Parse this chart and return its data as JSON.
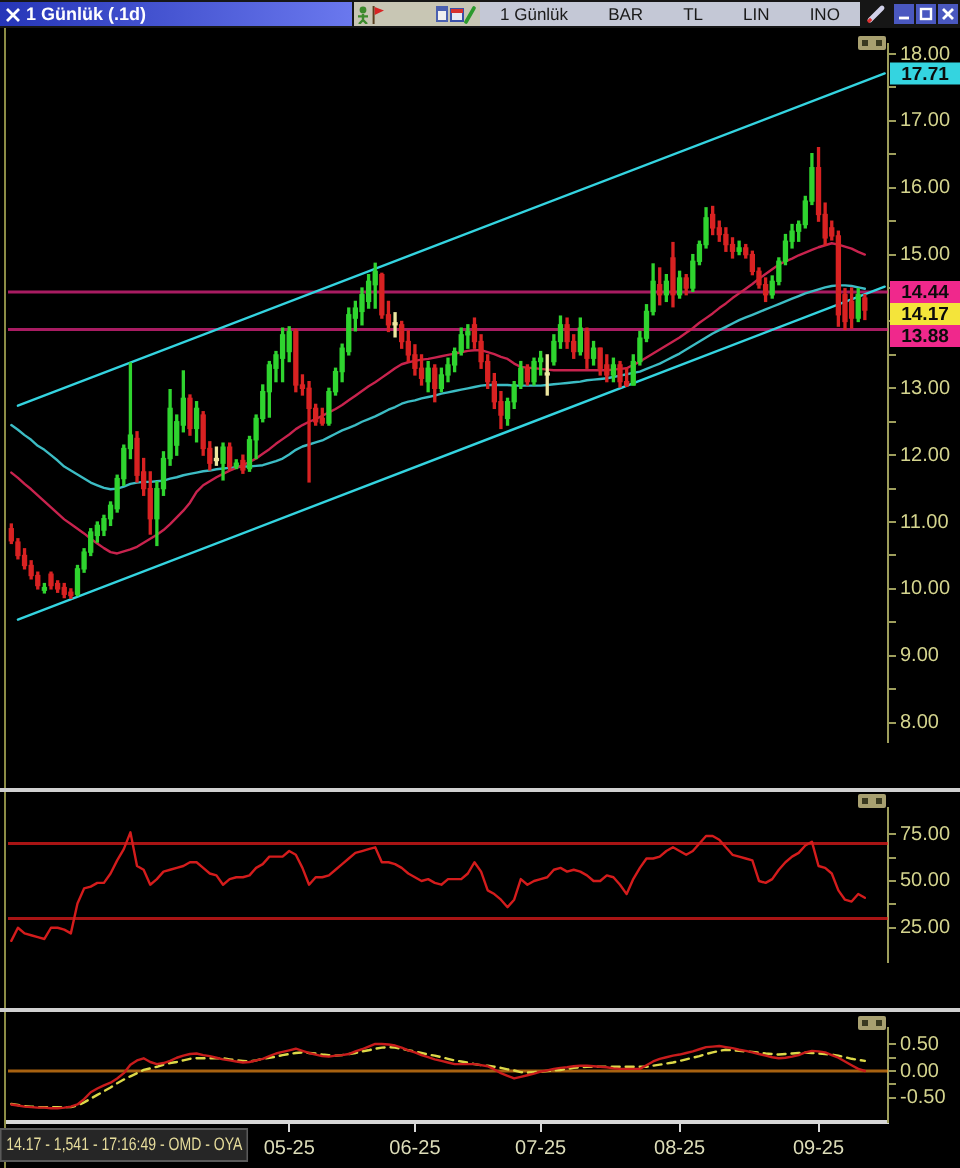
{
  "chart_data": [
    {
      "type": "candlestick",
      "title": "1 Günlük (.1d)",
      "categories": [
        null,
        null,
        null,
        null,
        null,
        null,
        null,
        null,
        null,
        null,
        null,
        null,
        null,
        null,
        null,
        null,
        null,
        null,
        null,
        null,
        null,
        null,
        null,
        null,
        null,
        null,
        null,
        null,
        null,
        null,
        null,
        null,
        null,
        null,
        null,
        null,
        null,
        null,
        null,
        null,
        null,
        null,
        null,
        null,
        null,
        null,
        null,
        null,
        null,
        null,
        null,
        null,
        null,
        null,
        null,
        null,
        null,
        null,
        null,
        null,
        null,
        null,
        null,
        null,
        null,
        null,
        null,
        null,
        null,
        null,
        null,
        null,
        null,
        null,
        null,
        null,
        null,
        null,
        null,
        null,
        null,
        null,
        null,
        null,
        null,
        null,
        null,
        null,
        null,
        null,
        null,
        null,
        null,
        null,
        null,
        null,
        null,
        null,
        null,
        null,
        null,
        null,
        null,
        null,
        null,
        null,
        null,
        null,
        null,
        null,
        null,
        null,
        null,
        null,
        null,
        null,
        null,
        null,
        null,
        null,
        null,
        null,
        null,
        null,
        null,
        null,
        null,
        null,
        null,
        null,
        null,
        null,
        null
      ],
      "ohlc": [
        [
          10.9,
          10.97,
          10.68,
          10.72
        ],
        [
          10.7,
          10.75,
          10.45,
          10.5
        ],
        [
          10.5,
          10.6,
          10.3,
          10.35
        ],
        [
          10.35,
          10.42,
          10.15,
          10.2
        ],
        [
          10.2,
          10.25,
          10.0,
          10.05
        ],
        [
          9.98,
          10.08,
          9.94,
          10.02
        ],
        [
          10.22,
          10.25,
          10.0,
          10.05
        ],
        [
          10.08,
          10.12,
          9.95,
          10.0
        ],
        [
          10.02,
          10.08,
          9.87,
          9.92
        ],
        [
          9.95,
          10.0,
          9.86,
          9.9
        ],
        [
          9.92,
          10.35,
          9.9,
          10.3
        ],
        [
          10.3,
          10.6,
          10.25,
          10.55
        ],
        [
          10.55,
          10.9,
          10.5,
          10.85
        ],
        [
          10.8,
          11.0,
          10.7,
          10.95
        ],
        [
          10.88,
          11.1,
          10.8,
          11.05
        ],
        [
          11.05,
          11.3,
          10.95,
          11.25
        ],
        [
          11.2,
          11.7,
          11.15,
          11.65
        ],
        [
          11.65,
          12.15,
          11.55,
          12.1
        ],
        [
          12.1,
          13.38,
          11.95,
          12.3
        ],
        [
          12.25,
          12.35,
          11.6,
          11.7
        ],
        [
          11.75,
          11.95,
          11.4,
          11.5
        ],
        [
          11.5,
          11.75,
          10.82,
          11.05
        ],
        [
          11.05,
          11.6,
          10.65,
          11.5
        ],
        [
          11.5,
          12.05,
          11.4,
          11.95
        ],
        [
          11.95,
          12.98,
          11.85,
          12.7
        ],
        [
          12.15,
          12.6,
          12.0,
          12.5
        ],
        [
          12.45,
          13.26,
          12.35,
          12.85
        ],
        [
          12.85,
          12.9,
          12.3,
          12.4
        ],
        [
          12.4,
          12.8,
          12.2,
          12.7
        ],
        [
          12.6,
          12.65,
          12.0,
          12.1
        ],
        [
          12.1,
          12.2,
          11.78,
          11.88
        ],
        [
          11.92,
          12.12,
          11.85,
          11.92
        ],
        [
          11.88,
          12.18,
          11.63,
          12.12
        ],
        [
          12.12,
          12.18,
          11.78,
          11.83
        ],
        [
          11.83,
          11.93,
          11.8,
          11.88
        ],
        [
          11.92,
          12.0,
          11.73,
          11.78
        ],
        [
          11.8,
          12.28,
          11.76,
          12.23
        ],
        [
          12.23,
          12.6,
          11.95,
          12.55
        ],
        [
          12.55,
          13.05,
          12.5,
          12.95
        ],
        [
          12.95,
          13.4,
          12.57,
          13.35
        ],
        [
          13.3,
          13.55,
          13.1,
          13.5
        ],
        [
          13.45,
          13.9,
          13.1,
          13.8
        ],
        [
          13.55,
          13.92,
          13.4,
          13.85
        ],
        [
          13.85,
          13.88,
          12.95,
          13.05
        ],
        [
          13.05,
          13.2,
          12.9,
          13.0
        ],
        [
          13.0,
          13.1,
          11.6,
          12.7
        ],
        [
          12.7,
          12.76,
          12.45,
          12.5
        ],
        [
          12.55,
          12.7,
          12.45,
          12.48
        ],
        [
          12.48,
          13.0,
          12.45,
          12.95
        ],
        [
          12.95,
          13.3,
          12.9,
          13.25
        ],
        [
          13.25,
          13.66,
          13.1,
          13.6
        ],
        [
          13.55,
          14.2,
          13.5,
          14.1
        ],
        [
          14.05,
          14.3,
          13.86,
          14.2
        ],
        [
          14.15,
          14.5,
          13.95,
          14.4
        ],
        [
          14.3,
          14.7,
          14.2,
          14.6
        ],
        [
          14.55,
          14.87,
          14.2,
          14.75
        ],
        [
          14.7,
          14.72,
          14.05,
          14.1
        ],
        [
          14.1,
          14.3,
          13.85,
          13.95
        ],
        [
          13.95,
          14.13,
          13.77,
          13.95
        ],
        [
          13.95,
          14.0,
          13.6,
          13.7
        ],
        [
          13.7,
          13.86,
          13.4,
          13.5
        ],
        [
          13.5,
          13.65,
          13.2,
          13.3
        ],
        [
          13.3,
          13.5,
          13.05,
          13.15
        ],
        [
          13.1,
          13.4,
          12.95,
          13.3
        ],
        [
          13.3,
          13.35,
          12.8,
          13.0
        ],
        [
          13.0,
          13.3,
          12.95,
          13.2
        ],
        [
          13.2,
          13.45,
          13.1,
          13.35
        ],
        [
          13.35,
          13.6,
          13.25,
          13.55
        ],
        [
          13.55,
          13.9,
          13.5,
          13.8
        ],
        [
          13.8,
          13.95,
          13.6,
          13.85
        ],
        [
          13.95,
          14.05,
          13.6,
          13.7
        ],
        [
          13.7,
          13.8,
          13.3,
          13.4
        ],
        [
          13.4,
          13.5,
          13.0,
          13.1
        ],
        [
          13.1,
          13.22,
          12.7,
          12.8
        ],
        [
          12.8,
          12.95,
          12.4,
          12.6
        ],
        [
          12.55,
          12.85,
          12.45,
          12.8
        ],
        [
          12.8,
          13.1,
          12.7,
          13.05
        ],
        [
          13.05,
          13.4,
          13.0,
          13.3
        ],
        [
          13.3,
          13.35,
          13.05,
          13.1
        ],
        [
          13.1,
          13.45,
          13.05,
          13.4
        ],
        [
          13.4,
          13.55,
          13.2,
          13.45
        ],
        [
          13.2,
          13.5,
          12.9,
          13.2
        ],
        [
          13.4,
          13.8,
          13.35,
          13.7
        ],
        [
          13.7,
          14.08,
          13.6,
          13.95
        ],
        [
          13.95,
          14.05,
          13.6,
          13.7
        ],
        [
          13.7,
          13.8,
          13.45,
          13.55
        ],
        [
          13.55,
          14.05,
          13.5,
          13.9
        ],
        [
          13.85,
          13.9,
          13.3,
          13.45
        ],
        [
          13.45,
          13.7,
          13.35,
          13.6
        ],
        [
          13.6,
          13.6,
          13.2,
          13.3
        ],
        [
          13.35,
          13.5,
          13.1,
          13.2
        ],
        [
          13.2,
          13.45,
          13.1,
          13.35
        ],
        [
          13.35,
          13.4,
          13.02,
          13.1
        ],
        [
          13.1,
          13.3,
          13.03,
          13.05
        ],
        [
          13.05,
          13.5,
          13.05,
          13.4
        ],
        [
          13.4,
          13.85,
          13.35,
          13.75
        ],
        [
          13.75,
          14.25,
          13.7,
          14.15
        ],
        [
          14.15,
          14.86,
          14.1,
          14.6
        ],
        [
          14.55,
          14.8,
          14.25,
          14.4
        ],
        [
          14.4,
          14.7,
          14.3,
          14.6
        ],
        [
          14.95,
          15.18,
          14.22,
          14.4
        ],
        [
          14.4,
          14.75,
          14.35,
          14.65
        ],
        [
          14.65,
          14.7,
          14.4,
          14.5
        ],
        [
          14.5,
          15.0,
          14.45,
          14.9
        ],
        [
          14.9,
          15.2,
          14.85,
          15.15
        ],
        [
          15.15,
          15.7,
          15.1,
          15.55
        ],
        [
          15.6,
          15.72,
          15.3,
          15.4
        ],
        [
          15.4,
          15.5,
          15.2,
          15.3
        ],
        [
          15.3,
          15.4,
          15.05,
          15.15
        ],
        [
          15.15,
          15.25,
          14.95,
          15.05
        ],
        [
          15.05,
          15.2,
          15.0,
          15.1
        ],
        [
          15.1,
          15.15,
          14.95,
          15.0
        ],
        [
          15.0,
          15.05,
          14.7,
          14.75
        ],
        [
          14.75,
          14.8,
          14.5,
          14.55
        ],
        [
          14.55,
          14.65,
          14.3,
          14.4
        ],
        [
          14.4,
          14.68,
          14.35,
          14.6
        ],
        [
          14.6,
          14.95,
          14.55,
          14.9
        ],
        [
          14.9,
          15.3,
          14.85,
          15.2
        ],
        [
          15.2,
          15.45,
          15.1,
          15.35
        ],
        [
          15.35,
          15.5,
          15.2,
          15.45
        ],
        [
          15.45,
          15.87,
          15.4,
          15.8
        ],
        [
          15.8,
          16.51,
          15.75,
          16.3
        ],
        [
          16.3,
          16.6,
          15.5,
          15.6
        ],
        [
          15.6,
          15.77,
          15.14,
          15.25
        ],
        [
          15.4,
          15.5,
          15.22,
          15.28
        ],
        [
          15.28,
          15.35,
          13.93,
          14.1
        ],
        [
          14.4,
          14.49,
          13.88,
          14.0
        ],
        [
          14.3,
          14.5,
          13.9,
          14.05
        ],
        [
          14.05,
          14.49,
          14.0,
          14.4
        ],
        [
          14.35,
          14.4,
          14.03,
          14.17
        ],
        null,
        null,
        null
      ],
      "series": [
        {
          "type": "line",
          "color": "#c8234e",
          "values": [
            11.74,
            11.66,
            11.57,
            11.49,
            11.4,
            11.31,
            11.22,
            11.13,
            11.04,
            10.97,
            10.9,
            10.83,
            10.75,
            10.68,
            10.61,
            10.55,
            10.53,
            10.56,
            10.59,
            10.63,
            10.69,
            10.75,
            10.81,
            10.88,
            10.97,
            11.07,
            11.17,
            11.29,
            11.45,
            11.55,
            11.61,
            11.67,
            11.72,
            11.77,
            11.81,
            11.85,
            11.9,
            11.95,
            12.02,
            12.09,
            12.17,
            12.24,
            12.31,
            12.39,
            12.45,
            12.5,
            12.54,
            12.59,
            12.64,
            12.69,
            12.75,
            12.82,
            12.89,
            12.96,
            13.03,
            13.09,
            13.16,
            13.23,
            13.3,
            13.36,
            13.39,
            13.41,
            13.43,
            13.44,
            13.46,
            13.48,
            13.5,
            13.52,
            13.54,
            13.56,
            13.57,
            13.57,
            13.54,
            13.51,
            13.47,
            13.44,
            13.37,
            13.32,
            13.31,
            13.3,
            13.29,
            13.28,
            13.27,
            13.27,
            13.27,
            13.27,
            13.27,
            13.27,
            13.27,
            13.27,
            13.27,
            13.28,
            13.29,
            13.3,
            13.35,
            13.4,
            13.46,
            13.52,
            13.58,
            13.64,
            13.7,
            13.76,
            13.83,
            13.9,
            13.98,
            14.05,
            14.12,
            14.2,
            14.27,
            14.35,
            14.42,
            14.49,
            14.56,
            14.64,
            14.71,
            14.78,
            14.85,
            14.9,
            14.94,
            14.99,
            15.03,
            15.07,
            15.11,
            15.14,
            15.17,
            15.15,
            15.12,
            15.09,
            15.04,
            15.0,
            null,
            null,
            null
          ]
        },
        {
          "type": "line",
          "color": "#3cbcc4",
          "values": [
            12.45,
            12.38,
            12.3,
            12.23,
            12.14,
            12.08,
            12.0,
            11.92,
            11.83,
            11.77,
            11.71,
            11.65,
            11.59,
            11.55,
            11.51,
            11.49,
            11.5,
            11.53,
            11.57,
            11.59,
            11.6,
            11.6,
            11.61,
            11.62,
            11.65,
            11.67,
            11.7,
            11.72,
            11.74,
            11.76,
            11.77,
            11.79,
            11.8,
            11.81,
            11.82,
            11.83,
            11.83,
            11.84,
            11.85,
            11.88,
            11.91,
            11.95,
            12.01,
            12.08,
            12.13,
            12.16,
            12.19,
            12.22,
            12.27,
            12.32,
            12.37,
            12.41,
            12.45,
            12.5,
            12.54,
            12.58,
            12.63,
            12.68,
            12.72,
            12.77,
            12.8,
            12.82,
            12.85,
            12.87,
            12.89,
            12.92,
            12.94,
            12.96,
            12.98,
            13.0,
            13.02,
            13.04,
            13.05,
            13.05,
            13.05,
            13.05,
            13.04,
            13.04,
            13.04,
            13.04,
            13.04,
            13.05,
            13.06,
            13.07,
            13.08,
            13.09,
            13.1,
            13.12,
            13.13,
            13.14,
            13.15,
            13.17,
            13.19,
            13.21,
            13.23,
            13.25,
            13.29,
            13.33,
            13.37,
            13.42,
            13.47,
            13.52,
            13.58,
            13.64,
            13.7,
            13.76,
            13.82,
            13.87,
            13.92,
            13.97,
            14.02,
            14.06,
            14.1,
            14.14,
            14.18,
            14.22,
            14.26,
            14.3,
            14.34,
            14.38,
            14.42,
            14.45,
            14.48,
            14.51,
            14.53,
            14.54,
            14.54,
            14.53,
            14.51,
            14.49,
            null,
            null,
            null
          ]
        },
        {
          "type": "line",
          "color": "#34d4e0",
          "values": [
            null,
            12.74,
            null,
            null,
            null,
            null,
            null,
            null,
            null,
            null,
            null,
            null,
            null,
            null,
            null,
            null,
            null,
            null,
            null,
            null,
            null,
            null,
            null,
            null,
            null,
            null,
            null,
            null,
            null,
            null,
            null,
            null,
            null,
            null,
            null,
            null,
            null,
            null,
            null,
            null,
            null,
            null,
            null,
            null,
            null,
            null,
            null,
            null,
            null,
            null,
            null,
            null,
            null,
            null,
            null,
            null,
            null,
            null,
            null,
            null,
            null,
            null,
            null,
            null,
            null,
            null,
            null,
            null,
            null,
            null,
            null,
            null,
            null,
            null,
            null,
            null,
            null,
            null,
            null,
            null,
            null,
            null,
            null,
            null,
            null,
            null,
            null,
            null,
            null,
            null,
            null,
            null,
            null,
            null,
            null,
            null,
            null,
            null,
            null,
            null,
            null,
            null,
            null,
            null,
            null,
            null,
            null,
            null,
            null,
            null,
            null,
            null,
            null,
            null,
            null,
            null,
            null,
            null,
            null,
            null,
            null,
            null,
            null,
            null,
            null,
            null,
            null,
            null,
            null,
            null,
            null,
            null,
            17.71
          ]
        },
        {
          "type": "line",
          "color": "#34d4e0",
          "values": [
            null,
            9.54,
            null,
            null,
            null,
            null,
            null,
            null,
            null,
            null,
            null,
            null,
            null,
            null,
            null,
            null,
            null,
            null,
            null,
            null,
            null,
            null,
            null,
            null,
            null,
            null,
            null,
            null,
            null,
            null,
            null,
            null,
            null,
            null,
            null,
            null,
            null,
            null,
            null,
            null,
            null,
            null,
            null,
            null,
            null,
            null,
            null,
            null,
            null,
            null,
            null,
            null,
            null,
            null,
            null,
            null,
            null,
            null,
            null,
            null,
            null,
            null,
            null,
            null,
            null,
            null,
            null,
            null,
            null,
            null,
            null,
            null,
            null,
            null,
            null,
            null,
            null,
            null,
            null,
            null,
            null,
            null,
            null,
            null,
            null,
            null,
            null,
            null,
            null,
            null,
            null,
            null,
            null,
            null,
            null,
            null,
            null,
            null,
            null,
            null,
            null,
            null,
            null,
            null,
            null,
            null,
            null,
            null,
            null,
            null,
            null,
            null,
            null,
            null,
            null,
            null,
            null,
            null,
            null,
            null,
            null,
            null,
            null,
            null,
            null,
            null,
            null,
            null,
            null,
            null,
            null,
            null,
            14.52
          ]
        }
      ],
      "ylim": [
        7.71,
        18.15
      ],
      "yticks": [
        {
          "value": 8,
          "label": "8.00"
        },
        {
          "value": 8.5,
          "label": null
        },
        {
          "value": 9,
          "label": "9.00"
        },
        {
          "value": 9.5,
          "label": null
        },
        {
          "value": 10,
          "label": "10.00"
        },
        {
          "value": 10.5,
          "label": null
        },
        {
          "value": 11,
          "label": "11.00"
        },
        {
          "value": 11.5,
          "label": null
        },
        {
          "value": 12,
          "label": "12.00"
        },
        {
          "value": 12.5,
          "label": null
        },
        {
          "value": 13,
          "label": "13.00"
        },
        {
          "value": 13.5,
          "label": null
        },
        {
          "value": 14,
          "label": null
        },
        {
          "value": 14.5,
          "label": null
        },
        {
          "value": 15,
          "label": "15.00"
        },
        {
          "value": 15.5,
          "label": null
        },
        {
          "value": 16,
          "label": "16.00"
        },
        {
          "value": 16.5,
          "label": null
        },
        {
          "value": 17,
          "label": "17.00"
        },
        {
          "value": 17.5,
          "label": null
        },
        {
          "value": 18,
          "label": "18.00"
        }
      ],
      "ref_lines": [
        {
          "axis": "y",
          "value": 14.44,
          "label": "14.44",
          "color": "#f0288c"
        },
        {
          "axis": "y",
          "value": 13.88,
          "label": "13.88",
          "color": "#f0288c"
        }
      ],
      "annotations": [
        {
          "text": "17.71",
          "y": 17.71
        },
        {
          "text": "14.17",
          "y": 14.17
        },
        "1 Günlük",
        "BAR",
        "TL",
        "LIN",
        "INO"
      ],
      "tick_labels": "y",
      "grid": false,
      "legend": false
    },
    {
      "type": "line",
      "categories": [
        null,
        null,
        null,
        null,
        null,
        null,
        null,
        null,
        null,
        null,
        null,
        null,
        null,
        null,
        null,
        null,
        null,
        null,
        null,
        null,
        null,
        null,
        null,
        null,
        null,
        null,
        null,
        null,
        null,
        null,
        null,
        null,
        null,
        null,
        null,
        null,
        null,
        null,
        null,
        null,
        null,
        null,
        null,
        null,
        null,
        null,
        null,
        null,
        null,
        null,
        null,
        null,
        null,
        null,
        null,
        null,
        null,
        null,
        null,
        null,
        null,
        null,
        null,
        null,
        null,
        null,
        null,
        null,
        null,
        null,
        null,
        null,
        null,
        null,
        null,
        null,
        null,
        null,
        null,
        null,
        null,
        null,
        null,
        null,
        null,
        null,
        null,
        null,
        null,
        null,
        null,
        null,
        null,
        null,
        null,
        null,
        null,
        null,
        null,
        null,
        null,
        null,
        null,
        null,
        null,
        null,
        null,
        null,
        null,
        null,
        null,
        null,
        null,
        null,
        null,
        null,
        null,
        null,
        null,
        null,
        null,
        null,
        null,
        null,
        null,
        null,
        null,
        null,
        null,
        null,
        null,
        null,
        null
      ],
      "series": [
        {
          "color": "#d41c1c",
          "values": [
            18,
            25,
            22,
            21,
            20,
            19,
            25,
            25,
            24,
            22,
            38,
            46,
            47,
            49,
            49,
            54,
            61,
            67,
            76,
            58,
            56,
            48,
            51,
            55,
            56,
            57,
            58,
            60,
            60,
            57,
            54,
            53,
            48,
            51,
            52,
            52,
            53,
            57,
            59,
            63,
            63,
            63,
            66,
            64,
            57,
            48,
            52,
            52,
            53,
            56,
            59,
            62,
            65,
            66,
            67,
            68,
            60,
            60,
            59,
            57,
            54,
            52,
            50,
            51,
            49,
            48,
            51,
            51,
            51,
            54,
            60,
            55,
            45,
            43,
            40,
            36,
            40,
            51,
            48,
            50,
            51,
            52,
            56,
            57,
            55,
            56,
            55,
            53,
            50,
            50,
            53,
            52,
            48,
            43,
            51,
            57,
            62,
            62,
            63,
            66,
            68,
            66,
            64,
            66,
            70,
            74,
            74,
            72,
            68,
            64,
            63,
            62,
            61,
            50,
            49,
            51,
            56,
            60,
            63,
            65,
            69,
            71,
            58,
            57,
            54,
            45,
            40,
            39,
            43,
            41,
            null,
            null,
            null
          ]
        }
      ],
      "ylim": [
        6.7,
        89
      ],
      "yticks": [
        {
          "value": 25,
          "label": "25.00"
        },
        {
          "value": 37.5,
          "label": null
        },
        {
          "value": 50,
          "label": "50.00"
        },
        {
          "value": 62.5,
          "label": null
        },
        {
          "value": 75,
          "label": "75.00"
        }
      ],
      "ref_lines": [
        {
          "axis": "y",
          "value": 70,
          "color": "#f01c1c"
        },
        {
          "axis": "y",
          "value": 30,
          "color": "#f01c1c"
        }
      ],
      "tick_labels": "y",
      "grid": false,
      "legend": false
    },
    {
      "type": "line",
      "categories": [
        null,
        null,
        null,
        null,
        null,
        null,
        null,
        null,
        null,
        null,
        null,
        null,
        null,
        null,
        null,
        null,
        null,
        null,
        null,
        null,
        null,
        null,
        null,
        null,
        null,
        null,
        null,
        null,
        null,
        null,
        null,
        null,
        null,
        null,
        null,
        null,
        null,
        null,
        null,
        null,
        null,
        null,
        "05-25",
        null,
        null,
        null,
        null,
        null,
        null,
        null,
        null,
        null,
        null,
        null,
        null,
        null,
        null,
        null,
        null,
        null,
        null,
        "06-25",
        null,
        null,
        null,
        null,
        null,
        null,
        null,
        null,
        null,
        null,
        null,
        null,
        null,
        null,
        null,
        null,
        null,
        null,
        "07-25",
        null,
        null,
        null,
        null,
        null,
        null,
        null,
        null,
        null,
        null,
        null,
        null,
        null,
        null,
        null,
        null,
        null,
        null,
        null,
        null,
        "08-25",
        null,
        null,
        null,
        null,
        null,
        null,
        null,
        null,
        null,
        null,
        null,
        null,
        null,
        null,
        null,
        null,
        null,
        null,
        null,
        null,
        "09-25",
        null,
        null,
        null,
        null,
        null,
        null,
        null,
        null,
        null,
        null
      ],
      "series": [
        {
          "color": "#c81c1c",
          "values": [
            -0.63,
            -0.65,
            -0.67,
            -0.68,
            -0.69,
            -0.69,
            -0.7,
            -0.7,
            -0.69,
            -0.67,
            -0.63,
            -0.53,
            -0.4,
            -0.33,
            -0.27,
            -0.22,
            -0.14,
            -0.04,
            0.12,
            0.2,
            0.24,
            0.17,
            0.13,
            0.15,
            0.19,
            0.25,
            0.29,
            0.32,
            0.33,
            0.3,
            0.28,
            0.25,
            0.22,
            0.2,
            0.18,
            0.16,
            0.17,
            0.2,
            0.23,
            0.28,
            0.33,
            0.36,
            0.39,
            0.42,
            0.38,
            0.34,
            0.31,
            0.28,
            0.27,
            0.29,
            0.3,
            0.32,
            0.37,
            0.41,
            0.46,
            0.51,
            0.51,
            0.5,
            0.48,
            0.44,
            0.39,
            0.35,
            0.3,
            0.26,
            0.22,
            0.19,
            0.16,
            0.13,
            0.13,
            0.13,
            0.13,
            0.11,
            0.09,
            0.03,
            -0.04,
            -0.09,
            -0.14,
            -0.11,
            -0.08,
            -0.05,
            -0.01,
            0.01,
            0.04,
            0.06,
            0.07,
            0.09,
            0.1,
            0.1,
            0.09,
            0.08,
            0.07,
            0.05,
            0.04,
            0.04,
            0.04,
            0.04,
            0.11,
            0.18,
            0.23,
            0.26,
            0.29,
            0.31,
            0.34,
            0.37,
            0.41,
            0.45,
            0.46,
            0.47,
            0.45,
            0.43,
            0.4,
            0.38,
            0.35,
            0.32,
            0.29,
            0.26,
            0.24,
            0.25,
            0.27,
            0.3,
            0.35,
            0.38,
            0.37,
            0.35,
            0.3,
            0.25,
            0.18,
            0.11,
            0.04,
            0.0,
            null,
            null,
            null
          ]
        },
        {
          "color": "#dcd848",
          "line_style": "dashed",
          "values": [
            -0.62,
            -0.64,
            -0.66,
            -0.67,
            -0.68,
            -0.68,
            -0.68,
            -0.68,
            -0.68,
            -0.68,
            -0.65,
            -0.59,
            -0.52,
            -0.45,
            -0.38,
            -0.31,
            -0.23,
            -0.16,
            -0.1,
            -0.04,
            0.02,
            0.05,
            0.08,
            0.12,
            0.15,
            0.17,
            0.2,
            0.23,
            0.24,
            0.24,
            0.24,
            0.24,
            0.24,
            0.22,
            0.2,
            0.19,
            0.18,
            0.2,
            0.23,
            0.25,
            0.27,
            0.3,
            0.32,
            0.34,
            0.35,
            0.34,
            0.33,
            0.31,
            0.3,
            0.29,
            0.3,
            0.32,
            0.34,
            0.37,
            0.39,
            0.42,
            0.44,
            0.45,
            0.44,
            0.42,
            0.39,
            0.37,
            0.34,
            0.31,
            0.29,
            0.26,
            0.23,
            0.2,
            0.18,
            0.16,
            0.13,
            0.11,
            0.1,
            0.08,
            0.06,
            0.03,
            0.01,
            -0.02,
            -0.03,
            -0.02,
            -0.01,
            0.0,
            0.01,
            0.02,
            0.04,
            0.06,
            0.07,
            0.08,
            0.08,
            0.08,
            0.08,
            0.08,
            0.08,
            0.08,
            0.08,
            0.08,
            0.08,
            0.1,
            0.12,
            0.14,
            0.16,
            0.19,
            0.22,
            0.25,
            0.28,
            0.32,
            0.35,
            0.38,
            0.4,
            0.39,
            0.38,
            0.37,
            0.36,
            0.35,
            0.33,
            0.32,
            0.31,
            0.32,
            0.33,
            0.34,
            0.35,
            0.34,
            0.33,
            0.32,
            0.31,
            0.29,
            0.26,
            0.23,
            0.21,
            0.19,
            null,
            null,
            null
          ]
        }
      ],
      "ylim": [
        -0.96,
        0.81
      ],
      "yticks": [
        {
          "value": -0.5,
          "label": "-0.50"
        },
        {
          "value": -0.25,
          "label": null
        },
        {
          "value": 0,
          "label": "0.00"
        },
        {
          "value": 0.25,
          "label": null
        },
        {
          "value": 0.5,
          "label": "0.50"
        }
      ],
      "ref_lines": [
        {
          "axis": "y",
          "value": 0,
          "color": "#f08c18"
        }
      ],
      "annotations": [
        "14.17 - 1,541 - 17:16:49 - OMD - OYA"
      ],
      "grid": false,
      "legend": false
    }
  ]
}
